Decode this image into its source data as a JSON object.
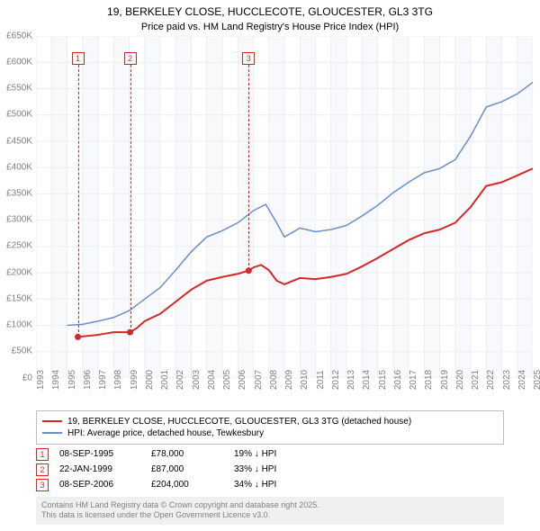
{
  "title_line1": "19, BERKELEY CLOSE, HUCCLECOTE, GLOUCESTER, GL3 3TG",
  "title_line2": "Price paid vs. HM Land Registry's House Price Index (HPI)",
  "chart": {
    "type": "line",
    "background_color": "#ffffff",
    "grid_color": "#eeeeee",
    "alt_band_color": "rgba(200,215,235,0.15)",
    "ylim": [
      0,
      650000
    ],
    "ytick_step": 50000,
    "yticks": [
      "£0",
      "£50K",
      "£100K",
      "£150K",
      "£200K",
      "£250K",
      "£300K",
      "£350K",
      "£400K",
      "£450K",
      "£500K",
      "£550K",
      "£600K",
      "£650K"
    ],
    "xlim": [
      1993,
      2025
    ],
    "xticks": [
      1993,
      1994,
      1995,
      1996,
      1997,
      1998,
      1999,
      2000,
      2001,
      2002,
      2003,
      2004,
      2005,
      2006,
      2007,
      2008,
      2009,
      2010,
      2011,
      2012,
      2013,
      2014,
      2015,
      2016,
      2017,
      2018,
      2019,
      2020,
      2021,
      2022,
      2023,
      2024,
      2025
    ],
    "series": [
      {
        "name": "price_paid",
        "label": "19, BERKELEY CLOSE, HUCCLECOTE, GLOUCESTER, GL3 3TG (detached house)",
        "color": "#d62728",
        "line_width": 2,
        "markers": [
          {
            "x": 1995.7,
            "y": 78000
          },
          {
            "x": 1999.06,
            "y": 87000
          },
          {
            "x": 2006.7,
            "y": 204000
          }
        ],
        "data": [
          {
            "x": 1995.7,
            "y": 78000
          },
          {
            "x": 1996,
            "y": 79000
          },
          {
            "x": 1997,
            "y": 82000
          },
          {
            "x": 1998,
            "y": 87000
          },
          {
            "x": 1999.06,
            "y": 87000
          },
          {
            "x": 1999.5,
            "y": 95000
          },
          {
            "x": 2000,
            "y": 108000
          },
          {
            "x": 2001,
            "y": 122000
          },
          {
            "x": 2002,
            "y": 145000
          },
          {
            "x": 2003,
            "y": 168000
          },
          {
            "x": 2004,
            "y": 185000
          },
          {
            "x": 2005,
            "y": 192000
          },
          {
            "x": 2006,
            "y": 198000
          },
          {
            "x": 2006.7,
            "y": 204000
          },
          {
            "x": 2007,
            "y": 210000
          },
          {
            "x": 2007.5,
            "y": 215000
          },
          {
            "x": 2008,
            "y": 205000
          },
          {
            "x": 2008.5,
            "y": 185000
          },
          {
            "x": 2009,
            "y": 178000
          },
          {
            "x": 2010,
            "y": 190000
          },
          {
            "x": 2011,
            "y": 188000
          },
          {
            "x": 2012,
            "y": 192000
          },
          {
            "x": 2013,
            "y": 198000
          },
          {
            "x": 2014,
            "y": 212000
          },
          {
            "x": 2015,
            "y": 228000
          },
          {
            "x": 2016,
            "y": 245000
          },
          {
            "x": 2017,
            "y": 262000
          },
          {
            "x": 2018,
            "y": 275000
          },
          {
            "x": 2019,
            "y": 282000
          },
          {
            "x": 2020,
            "y": 295000
          },
          {
            "x": 2021,
            "y": 325000
          },
          {
            "x": 2022,
            "y": 365000
          },
          {
            "x": 2023,
            "y": 372000
          },
          {
            "x": 2024,
            "y": 385000
          },
          {
            "x": 2025,
            "y": 398000
          }
        ]
      },
      {
        "name": "hpi",
        "label": "HPI: Average price, detached house, Tewkesbury",
        "color": "#6b8fc9",
        "line_width": 1.5,
        "data": [
          {
            "x": 1995,
            "y": 100000
          },
          {
            "x": 1996,
            "y": 102000
          },
          {
            "x": 1997,
            "y": 108000
          },
          {
            "x": 1998,
            "y": 115000
          },
          {
            "x": 1999,
            "y": 128000
          },
          {
            "x": 2000,
            "y": 150000
          },
          {
            "x": 2001,
            "y": 172000
          },
          {
            "x": 2002,
            "y": 205000
          },
          {
            "x": 2003,
            "y": 240000
          },
          {
            "x": 2004,
            "y": 268000
          },
          {
            "x": 2005,
            "y": 280000
          },
          {
            "x": 2006,
            "y": 295000
          },
          {
            "x": 2007,
            "y": 318000
          },
          {
            "x": 2007.8,
            "y": 330000
          },
          {
            "x": 2008.5,
            "y": 295000
          },
          {
            "x": 2009,
            "y": 268000
          },
          {
            "x": 2010,
            "y": 285000
          },
          {
            "x": 2011,
            "y": 278000
          },
          {
            "x": 2012,
            "y": 282000
          },
          {
            "x": 2013,
            "y": 290000
          },
          {
            "x": 2014,
            "y": 308000
          },
          {
            "x": 2015,
            "y": 328000
          },
          {
            "x": 2016,
            "y": 352000
          },
          {
            "x": 2017,
            "y": 372000
          },
          {
            "x": 2018,
            "y": 390000
          },
          {
            "x": 2019,
            "y": 398000
          },
          {
            "x": 2020,
            "y": 415000
          },
          {
            "x": 2021,
            "y": 460000
          },
          {
            "x": 2022,
            "y": 515000
          },
          {
            "x": 2023,
            "y": 525000
          },
          {
            "x": 2024,
            "y": 540000
          },
          {
            "x": 2025,
            "y": 562000
          }
        ]
      }
    ],
    "annotations": [
      {
        "n": "1",
        "x": 1995.7,
        "color": "#d62728"
      },
      {
        "n": "2",
        "x": 1999.06,
        "color": "#d62728"
      },
      {
        "n": "3",
        "x": 2006.7,
        "color": "#d62728"
      }
    ]
  },
  "legend": {
    "items": [
      {
        "color": "#d62728",
        "label": "19, BERKELEY CLOSE, HUCCLECOTE, GLOUCESTER, GL3 3TG (detached house)"
      },
      {
        "color": "#6b8fc9",
        "label": "HPI: Average price, detached house, Tewkesbury"
      }
    ]
  },
  "marker_rows": [
    {
      "n": "1",
      "color": "#d62728",
      "date": "08-SEP-1995",
      "price": "£78,000",
      "diff": "19% ↓ HPI"
    },
    {
      "n": "2",
      "color": "#d62728",
      "date": "22-JAN-1999",
      "price": "£87,000",
      "diff": "33% ↓ HPI"
    },
    {
      "n": "3",
      "color": "#d62728",
      "date": "08-SEP-2006",
      "price": "£204,000",
      "diff": "34% ↓ HPI"
    }
  ],
  "footer_line1": "Contains HM Land Registry data © Crown copyright and database right 2025.",
  "footer_line2": "This data is licensed under the Open Government Licence v3.0."
}
